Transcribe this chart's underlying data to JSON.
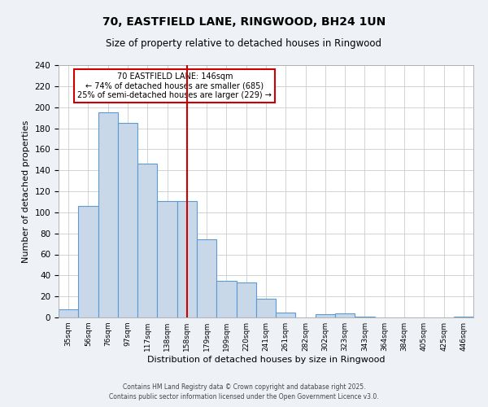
{
  "title": "70, EASTFIELD LANE, RINGWOOD, BH24 1UN",
  "subtitle": "Size of property relative to detached houses in Ringwood",
  "xlabel": "Distribution of detached houses by size in Ringwood",
  "ylabel": "Number of detached properties",
  "bin_labels": [
    "35sqm",
    "56sqm",
    "76sqm",
    "97sqm",
    "117sqm",
    "138sqm",
    "158sqm",
    "179sqm",
    "199sqm",
    "220sqm",
    "241sqm",
    "261sqm",
    "282sqm",
    "302sqm",
    "323sqm",
    "343sqm",
    "364sqm",
    "384sqm",
    "405sqm",
    "425sqm",
    "446sqm"
  ],
  "bar_heights": [
    8,
    106,
    195,
    185,
    146,
    111,
    111,
    74,
    35,
    33,
    18,
    5,
    0,
    3,
    4,
    1,
    0,
    0,
    0,
    0,
    1
  ],
  "bar_color": "#c8d8e8",
  "bar_edge_color": "#5b9bd5",
  "vline_x": 6.5,
  "vline_color": "#cc0000",
  "annotation_title": "70 EASTFIELD LANE: 146sqm",
  "annotation_line1": "← 74% of detached houses are smaller (685)",
  "annotation_line2": "25% of semi-detached houses are larger (229) →",
  "annotation_box_color": "#cc0000",
  "ylim": [
    0,
    240
  ],
  "yticks": [
    0,
    20,
    40,
    60,
    80,
    100,
    120,
    140,
    160,
    180,
    200,
    220,
    240
  ],
  "footer1": "Contains HM Land Registry data © Crown copyright and database right 2025.",
  "footer2": "Contains public sector information licensed under the Open Government Licence v3.0.",
  "bg_color": "#eef2f7",
  "plot_bg_color": "#ffffff",
  "grid_color": "#cccccc"
}
